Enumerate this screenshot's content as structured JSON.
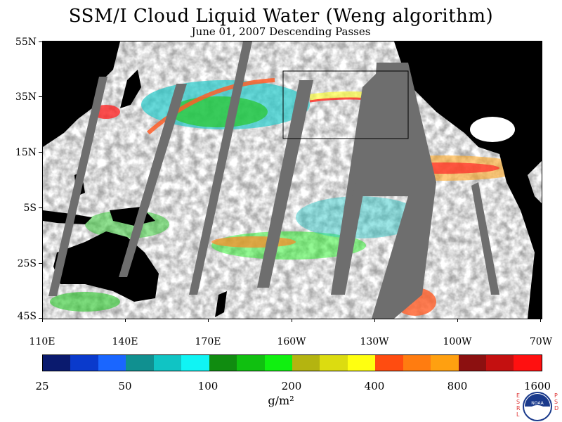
{
  "title": "SSM/I Cloud Liquid Water (Weng algorithm)",
  "subtitle": "June 01, 2007  Descending Passes",
  "lat_labels": [
    "55N",
    "35N",
    "15N",
    "5S",
    "25S",
    "45S"
  ],
  "lon_labels": [
    "110E",
    "140E",
    "170E",
    "160W",
    "130W",
    "100W",
    "70W"
  ],
  "colorbar": {
    "colors": [
      "#0a1a6e",
      "#0a3acc",
      "#1a66ff",
      "#109090",
      "#10c4c4",
      "#10f4f4",
      "#108c10",
      "#10c010",
      "#10f010",
      "#b4b410",
      "#dcdc10",
      "#ffff10",
      "#ff4c10",
      "#ff7c10",
      "#ffa010",
      "#8c1010",
      "#c41010",
      "#ff1010"
    ],
    "tick_labels": [
      "25",
      "50",
      "100",
      "200",
      "400",
      "800",
      "1600"
    ],
    "units": "g/m²"
  },
  "colors": {
    "land": "#000000",
    "missing_swath": "#6e6e6e",
    "background": "#ffffff"
  },
  "logo": {
    "left_text": "ESRL",
    "right_text": "PSD",
    "center_text": "NOAA"
  }
}
